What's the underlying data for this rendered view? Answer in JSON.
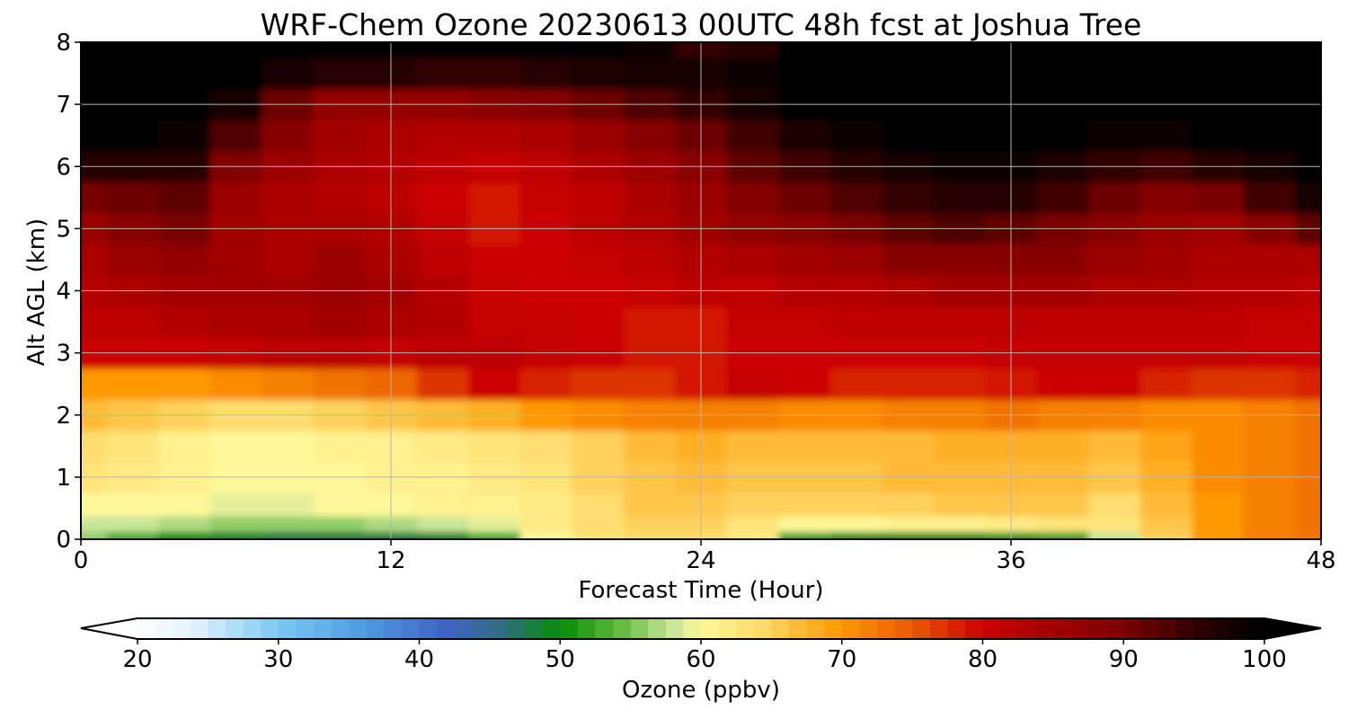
{
  "chart_data": {
    "type": "heatmap",
    "title": "WRF-Chem Ozone  20230613 00UTC 48h fcst at Joshua Tree",
    "xlabel": "Forecast Time (Hour)",
    "ylabel": "Alt AGL (km)",
    "xlim": [
      0,
      48
    ],
    "ylim": [
      0,
      8
    ],
    "xticks": [
      0,
      12,
      24,
      36,
      48
    ],
    "yticks": [
      0,
      1,
      2,
      3,
      4,
      5,
      6,
      7,
      8
    ],
    "grid": true,
    "x_hours": [
      0,
      2,
      4,
      6,
      8,
      10,
      12,
      14,
      16,
      18,
      20,
      22,
      24,
      26,
      28,
      30,
      32,
      34,
      36,
      38,
      40,
      42,
      44,
      46,
      48
    ],
    "z_km": [
      0,
      0.25,
      0.5,
      1,
      1.5,
      2,
      2.5,
      3,
      3.5,
      4,
      4.5,
      5,
      5.5,
      6,
      6.5,
      7,
      7.5,
      8
    ],
    "z_values_ppbv": [
      [
        56,
        53,
        50,
        49,
        48,
        48,
        48,
        49,
        53,
        60,
        63,
        64,
        64,
        62,
        52,
        50,
        50,
        50,
        51,
        52,
        58,
        65,
        70,
        72,
        73
      ],
      [
        58,
        58,
        57,
        56,
        56,
        56,
        57,
        58,
        59,
        62,
        64,
        65,
        65,
        63,
        60,
        60,
        61,
        61,
        62,
        63,
        63,
        66,
        70,
        72,
        73
      ],
      [
        60,
        60,
        60,
        59,
        59,
        60,
        60,
        61,
        61,
        62,
        64,
        66,
        66,
        65,
        65,
        65,
        65,
        66,
        66,
        66,
        64,
        67,
        70,
        72,
        73
      ],
      [
        63,
        62,
        61,
        60,
        60,
        60,
        61,
        61,
        62,
        63,
        65,
        66,
        67,
        66,
        66,
        66,
        67,
        67,
        67,
        67,
        66,
        68,
        71,
        72,
        73
      ],
      [
        64,
        63,
        61,
        60,
        60,
        61,
        61,
        62,
        63,
        64,
        65,
        67,
        68,
        67,
        67,
        67,
        67,
        68,
        68,
        68,
        67,
        69,
        71,
        72,
        73
      ],
      [
        67,
        66,
        65,
        64,
        64,
        65,
        66,
        67,
        68,
        70,
        71,
        72,
        72,
        72,
        71,
        71,
        72,
        72,
        73,
        72,
        72,
        71,
        71,
        72,
        73
      ],
      [
        70,
        70,
        70,
        71,
        72,
        73,
        74,
        77,
        80,
        78,
        77,
        77,
        79,
        81,
        80,
        78,
        78,
        78,
        79,
        80,
        80,
        78,
        77,
        77,
        78
      ],
      [
        80,
        80,
        80,
        81,
        82,
        82,
        81,
        82,
        82,
        81,
        80,
        79,
        79,
        80,
        80,
        80,
        80,
        80,
        81,
        81,
        81,
        81,
        81,
        80,
        80
      ],
      [
        82,
        82,
        83,
        84,
        84,
        85,
        84,
        83,
        81,
        81,
        80,
        79,
        79,
        81,
        81,
        82,
        82,
        82,
        82,
        82,
        82,
        82,
        82,
        81,
        81
      ],
      [
        83,
        84,
        85,
        85,
        85,
        86,
        85,
        83,
        81,
        80,
        80,
        81,
        82,
        82,
        83,
        83,
        84,
        85,
        85,
        85,
        84,
        84,
        83,
        83,
        82
      ],
      [
        84,
        86,
        87,
        85,
        84,
        86,
        84,
        82,
        80,
        80,
        81,
        82,
        83,
        84,
        85,
        86,
        88,
        88,
        88,
        88,
        86,
        85,
        84,
        84,
        84
      ],
      [
        86,
        88,
        90,
        85,
        84,
        84,
        83,
        81,
        79,
        80,
        82,
        83,
        85,
        87,
        88,
        90,
        92,
        93,
        92,
        90,
        88,
        86,
        85,
        88,
        92
      ],
      [
        90,
        91,
        92,
        86,
        84,
        83,
        82,
        80,
        79,
        81,
        82,
        84,
        86,
        89,
        91,
        93,
        95,
        96,
        96,
        94,
        91,
        89,
        90,
        94,
        98
      ],
      [
        96,
        96,
        96,
        89,
        86,
        84,
        83,
        82,
        81,
        82,
        84,
        86,
        88,
        92,
        94,
        96,
        98,
        99,
        99,
        97,
        95,
        94,
        96,
        98,
        100
      ],
      [
        100,
        100,
        99,
        93,
        88,
        85,
        84,
        83,
        83,
        84,
        86,
        88,
        91,
        94,
        97,
        99,
        100,
        101,
        101,
        100,
        99,
        99,
        100,
        101,
        102
      ],
      [
        102,
        102,
        101,
        98,
        91,
        87,
        87,
        87,
        88,
        89,
        91,
        93,
        95,
        98,
        100,
        101,
        102,
        102,
        102,
        102,
        102,
        102,
        102,
        102,
        102
      ],
      [
        103,
        103,
        103,
        102,
        98,
        96,
        96,
        95,
        95,
        96,
        97,
        98,
        98,
        99,
        100,
        102,
        103,
        103,
        103,
        103,
        103,
        103,
        103,
        103,
        103
      ],
      [
        104,
        104,
        104,
        104,
        104,
        104,
        103,
        103,
        103,
        103,
        102,
        99,
        95,
        96,
        101,
        103,
        104,
        104,
        104,
        104,
        104,
        104,
        104,
        104,
        104
      ]
    ],
    "colorbar": {
      "label": "Ozone  (ppbv)",
      "min": 20,
      "max": 100,
      "ticks": [
        20,
        30,
        40,
        50,
        60,
        70,
        80,
        90,
        100
      ],
      "extend": "both",
      "color_stops": [
        {
          "value": 20,
          "color": "#ffffff"
        },
        {
          "value": 24,
          "color": "#e2f2fb"
        },
        {
          "value": 30,
          "color": "#7cc8f2"
        },
        {
          "value": 36,
          "color": "#4f9be0"
        },
        {
          "value": 42,
          "color": "#3f62c4"
        },
        {
          "value": 46,
          "color": "#2f6f7e"
        },
        {
          "value": 50,
          "color": "#078b07"
        },
        {
          "value": 54,
          "color": "#5cb63a"
        },
        {
          "value": 58,
          "color": "#c8e699"
        },
        {
          "value": 60,
          "color": "#fff799"
        },
        {
          "value": 64,
          "color": "#ffdd70"
        },
        {
          "value": 70,
          "color": "#ff9900"
        },
        {
          "value": 75,
          "color": "#e85a00"
        },
        {
          "value": 80,
          "color": "#cc0000"
        },
        {
          "value": 90,
          "color": "#7a0000"
        },
        {
          "value": 96,
          "color": "#250000"
        },
        {
          "value": 100,
          "color": "#000000"
        }
      ]
    }
  }
}
